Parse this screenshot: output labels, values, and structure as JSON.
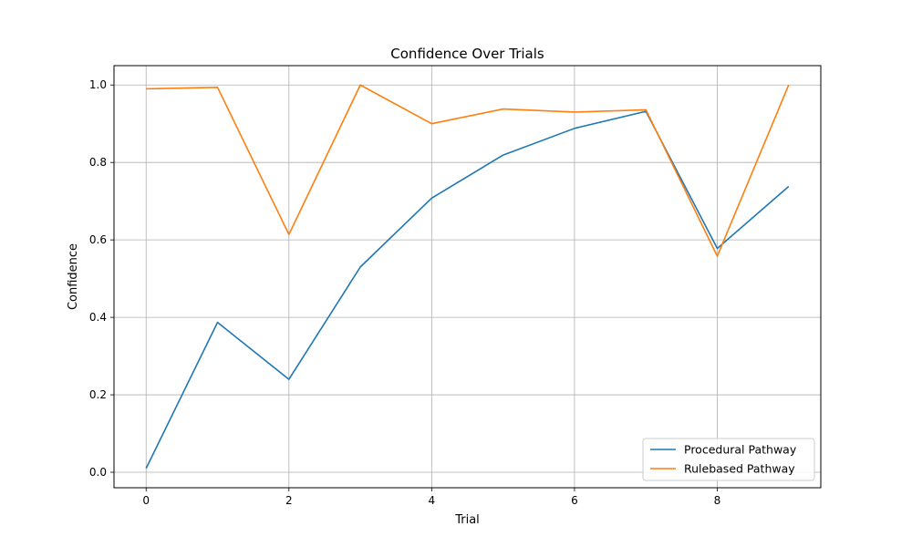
{
  "chart_data": {
    "type": "line",
    "title": "Confidence Over Trials",
    "xlabel": "Trial",
    "ylabel": "Confidence",
    "x": [
      0,
      1,
      2,
      3,
      4,
      5,
      6,
      7,
      8,
      9
    ],
    "xlim": [
      -0.45,
      9.45
    ],
    "ylim": [
      -0.04,
      1.05
    ],
    "xticks": [
      0,
      2,
      4,
      6,
      8
    ],
    "yticks": [
      0.0,
      0.2,
      0.4,
      0.6,
      0.8,
      1.0
    ],
    "xtick_labels": [
      "0",
      "2",
      "4",
      "6",
      "8"
    ],
    "ytick_labels": [
      "0.0",
      "0.2",
      "0.4",
      "0.6",
      "0.8",
      "1.0"
    ],
    "grid": true,
    "legend_position": "lower-right",
    "series": [
      {
        "name": "Procedural Pathway",
        "color": "#1f77b4",
        "values": [
          0.01,
          0.387,
          0.24,
          0.53,
          0.708,
          0.819,
          0.888,
          0.932,
          0.578,
          0.738
        ]
      },
      {
        "name": "Rulebased Pathway",
        "color": "#ff7f0e",
        "values": [
          0.99,
          0.994,
          0.614,
          1.0,
          0.9,
          0.938,
          0.93,
          0.936,
          0.558,
          1.0
        ]
      }
    ]
  }
}
